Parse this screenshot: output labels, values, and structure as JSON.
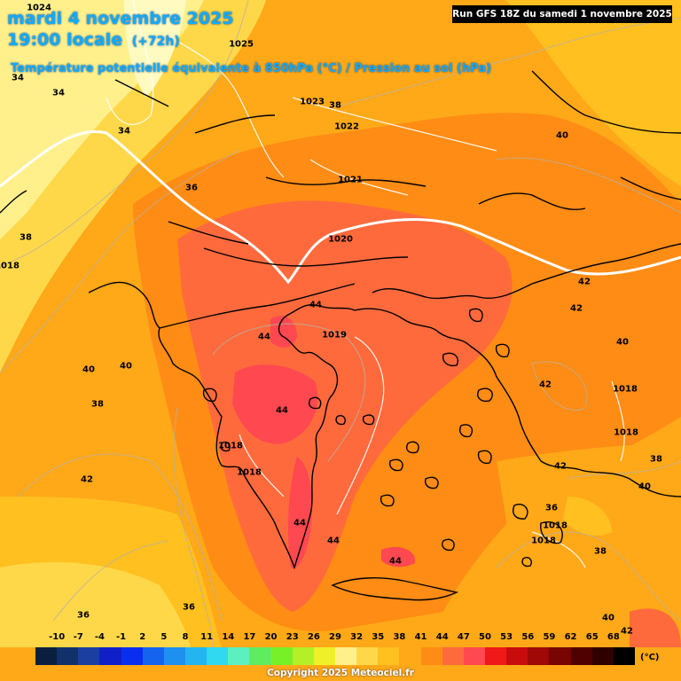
{
  "header": {
    "date": "mardi 4 novembre 2025",
    "time": "19:00 locale",
    "lead": "(+72h)",
    "subtitle": "Température potentielle équivalente à 850hPa (°C) / Pression au sol (hPa)",
    "run": "Run GFS 18Z du samedi 1 novembre 2025"
  },
  "legend": {
    "ticks": [
      "-10",
      "-7",
      "-4",
      "-1",
      "2",
      "5",
      "8",
      "11",
      "14",
      "17",
      "20",
      "23",
      "26",
      "29",
      "32",
      "35",
      "38",
      "41",
      "44",
      "47",
      "50",
      "53",
      "56",
      "59",
      "62",
      "65",
      "68"
    ],
    "colors": [
      "#0a1f3d",
      "#12306a",
      "#1a3fa0",
      "#1020c8",
      "#0a2ef0",
      "#1564f0",
      "#1e90f0",
      "#24b4f0",
      "#30d8f0",
      "#5cf0c0",
      "#60ec60",
      "#78f028",
      "#b4f028",
      "#f0f028",
      "#fff08c",
      "#ffd84a",
      "#ffc020",
      "#ffa818",
      "#ff8c14",
      "#ff6a3c",
      "#ff4850",
      "#f01818",
      "#c80c0c",
      "#a00808",
      "#780404",
      "#500000",
      "#300000",
      "#000000"
    ],
    "unit": "(°C)"
  },
  "footer": {
    "copyright": "Copyright 2025 Meteociel.fr"
  },
  "map_labels": {
    "isobars": [
      "1024",
      "1025",
      "1023",
      "1022",
      "1021",
      "1020",
      "1019",
      "1018",
      "1018",
      "1018",
      "1018",
      "1018",
      "1018",
      "1018"
    ],
    "isotherms": [
      "34",
      "34",
      "34",
      "36",
      "38",
      "40",
      "40",
      "40",
      "40",
      "40",
      "42",
      "42",
      "42",
      "42",
      "42",
      "44",
      "44",
      "44",
      "44",
      "44",
      "44",
      "38",
      "38",
      "36",
      "36",
      "36",
      "38",
      "38",
      "40",
      "42"
    ]
  },
  "colors": {
    "pale_yellow": "#fff08c",
    "yellow": "#ffd84a",
    "light_orange": "#ffc020",
    "orange": "#ffa818",
    "dark_orange": "#ff8c14",
    "red_orange": "#ff6a3c",
    "red": "#ff4850",
    "background_sea": "#f6a323"
  }
}
